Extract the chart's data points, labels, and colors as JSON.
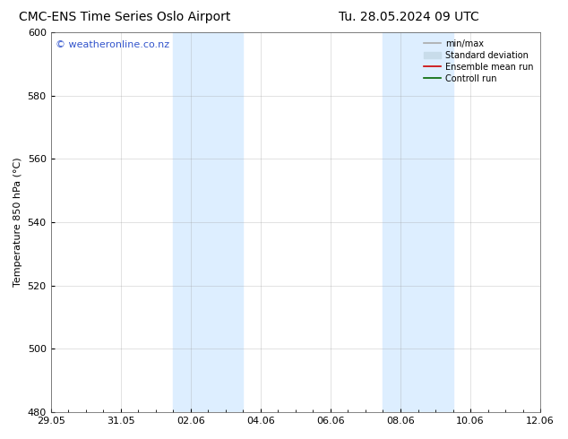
{
  "title_left": "CMC-ENS Time Series Oslo Airport",
  "title_right": "Tu. 28.05.2024 09 UTC",
  "ylabel": "Temperature 850 hPa (°C)",
  "ylim": [
    480,
    600
  ],
  "yticks": [
    480,
    500,
    520,
    540,
    560,
    580,
    600
  ],
  "xtick_labels": [
    "29.05",
    "31.05",
    "02.06",
    "04.06",
    "06.06",
    "08.06",
    "10.06",
    "12.06"
  ],
  "xtick_positions": [
    0,
    2,
    4,
    6,
    8,
    10,
    12,
    14
  ],
  "xlim": [
    0,
    14
  ],
  "shade_bands": [
    {
      "x_start": 3.5,
      "x_end": 5.5
    },
    {
      "x_start": 9.5,
      "x_end": 11.5
    }
  ],
  "shade_color": "#ddeeff",
  "grid_color": "#999999",
  "bg_color": "#ffffff",
  "watermark_text": "© weatheronline.co.nz",
  "watermark_color": "#3355cc",
  "legend_items": [
    {
      "label": "min/max",
      "color": "#aaaaaa",
      "lw": 1.2,
      "style": "solid",
      "type": "line"
    },
    {
      "label": "Standard deviation",
      "color": "#c8dcea",
      "lw": 5,
      "style": "solid",
      "type": "patch"
    },
    {
      "label": "Ensemble mean run",
      "color": "#cc0000",
      "lw": 1.2,
      "style": "solid",
      "type": "line"
    },
    {
      "label": "Controll run",
      "color": "#006600",
      "lw": 1.2,
      "style": "solid",
      "type": "line"
    }
  ],
  "title_fontsize": 10,
  "tick_fontsize": 8,
  "label_fontsize": 8,
  "watermark_fontsize": 8,
  "legend_fontsize": 7
}
